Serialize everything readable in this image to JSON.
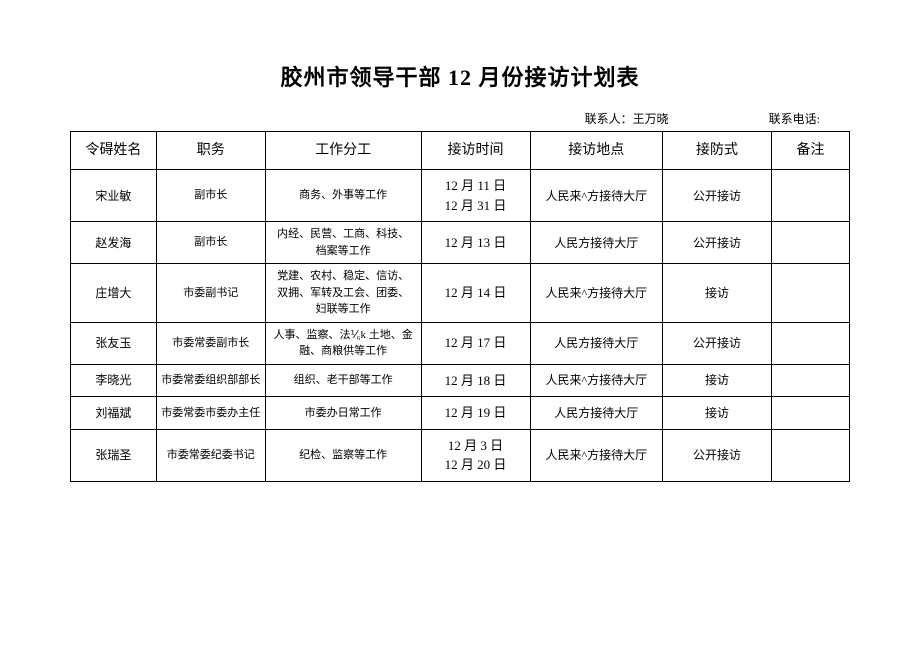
{
  "title": "胶州市领导干部 12 月份接访计划表",
  "contact_label": "联系人：王万晓",
  "phone_label": "联系电话:",
  "columns": [
    "令碍姓名",
    "职务",
    "工作分工",
    "接访时间",
    "接访地点",
    "接防式",
    "备注"
  ],
  "rows": [
    {
      "name": "宋业敏",
      "position": "副市长",
      "work": "商务、外事等工作",
      "time": "12 月 11 日\n12 月 31 日",
      "place": "人民来^方接待大厅",
      "method": "公开接访",
      "note": ""
    },
    {
      "name": "赵发海",
      "position": "副市长",
      "work": "内经、民营、工商、科技、档案等工作",
      "time": "12 月 13 日",
      "place": "人民方接待大厅",
      "method": "公开接访",
      "note": ""
    },
    {
      "name": "庄增大",
      "position": "市委副书记",
      "work": "党建、农村、稳定、信访、双拥、军转及工会、团委、妇联等工作",
      "time": "12 月 14 日",
      "place": "人民来^方接待大厅",
      "method": "接访",
      "note": ""
    },
    {
      "name": "张友玉",
      "position": "市委常委副市长",
      "work": "人事、监察、法⅟₆k 土地、金融、商粮供等工作",
      "time": "12 月 17 日",
      "place": "人民方接待大厅",
      "method": "公开接访",
      "note": ""
    },
    {
      "name": "李晓光",
      "position": "市委常委组织部部长",
      "work": "组织、老干部等工作",
      "time": "12 月 18 日",
      "place": "人民来^方接待大厅",
      "method": "接访",
      "note": ""
    },
    {
      "name": "刘福斌",
      "position": "市委常委市委办主任",
      "work": "市委办日常工作",
      "time": "12 月 19 日",
      "place": "人民方接待大厅",
      "method": "接访",
      "note": ""
    },
    {
      "name": "张瑞圣",
      "position": "市委常委纪委书记",
      "work": "纪检、监察等工作",
      "time": "12 月 3 日\n12 月 20 日",
      "place": "人民来^方接待大厅",
      "method": "公开接访",
      "note": ""
    }
  ]
}
